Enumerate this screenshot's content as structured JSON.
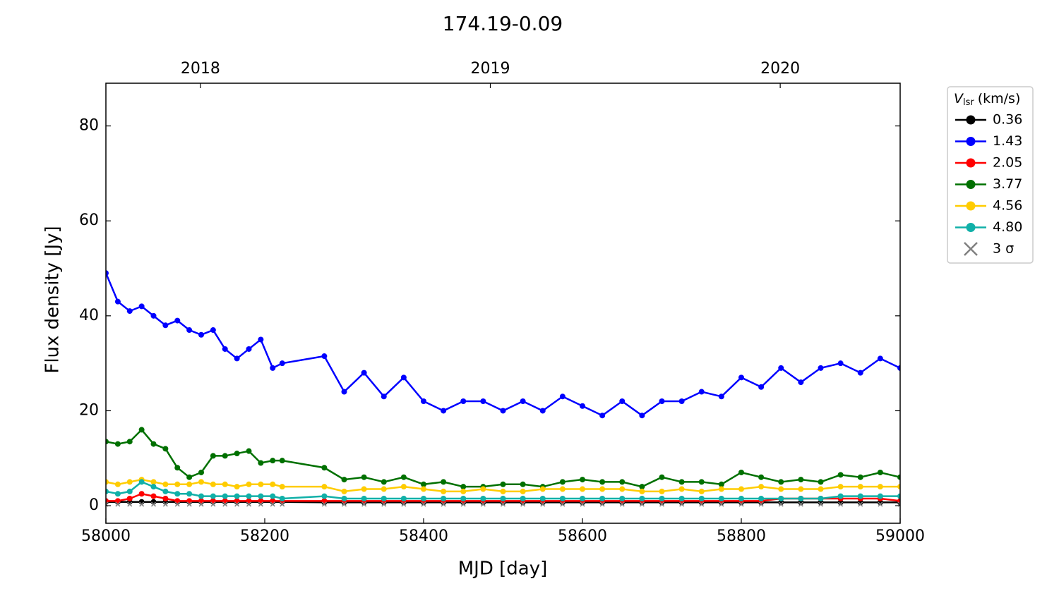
{
  "chart_data": {
    "type": "line",
    "title": "174.19-0.09",
    "x_label": "MJD [day]",
    "y_label": "Flux density [Jy]",
    "legend_title": {
      "symbol": "V",
      "subscript": "lsr",
      "unit": "(km/s)"
    },
    "legend_position": "outside-right",
    "xlim": [
      58000,
      59000
    ],
    "xticks": [
      58000,
      58200,
      58400,
      58600,
      58800,
      59000
    ],
    "ylim": [
      -3.7,
      89
    ],
    "yticks": [
      0,
      20,
      40,
      60,
      80
    ],
    "top_xticks": [
      {
        "value": 58119,
        "label": "2018"
      },
      {
        "value": 58484,
        "label": "2019"
      },
      {
        "value": 58849,
        "label": "2020"
      }
    ],
    "x": [
      58000,
      58015,
      58030,
      58045,
      58060,
      58075,
      58090,
      58105,
      58120,
      58135,
      58150,
      58165,
      58180,
      58195,
      58210,
      58222,
      58275,
      58300,
      58325,
      58350,
      58375,
      58400,
      58425,
      58450,
      58475,
      58500,
      58525,
      58550,
      58575,
      58600,
      58625,
      58650,
      58675,
      58700,
      58725,
      58750,
      58775,
      58800,
      58825,
      58850,
      58875,
      58900,
      58925,
      58950,
      58975,
      59000
    ],
    "series": [
      {
        "name": "0.36",
        "color": "#000000",
        "marker": "o",
        "values": [
          0.8,
          0.8,
          0.8,
          0.8,
          0.8,
          0.8,
          0.8,
          0.8,
          0.8,
          0.8,
          0.8,
          0.8,
          0.8,
          0.8,
          0.8,
          0.8,
          0.7,
          0.7,
          0.7,
          0.7,
          0.7,
          0.7,
          0.7,
          0.7,
          0.7,
          0.7,
          0.7,
          0.7,
          0.7,
          0.7,
          0.7,
          0.7,
          0.7,
          0.7,
          0.7,
          0.7,
          0.7,
          0.7,
          0.7,
          0.7,
          0.7,
          0.7,
          0.7,
          0.7,
          0.7,
          0.7
        ]
      },
      {
        "name": "1.43",
        "color": "#0000ff",
        "marker": "o",
        "values": [
          49,
          43,
          41,
          42,
          40,
          38,
          39,
          37,
          36,
          37,
          33,
          31,
          33,
          35,
          29,
          30,
          31.5,
          24,
          28,
          23,
          27,
          22,
          20,
          22,
          22,
          20,
          22,
          20,
          23,
          21,
          19,
          22,
          19,
          22,
          22,
          24,
          23,
          27,
          25,
          29,
          26,
          29,
          30,
          28,
          31,
          29
        ]
      },
      {
        "name": "2.05",
        "color": "#ff0000",
        "marker": "o",
        "values": [
          1,
          1,
          1.5,
          2.5,
          2,
          1.5,
          1,
          1,
          1,
          1,
          1,
          1,
          1,
          1,
          1,
          1,
          1,
          1,
          1,
          1,
          1,
          1,
          1,
          1,
          1,
          1,
          1,
          1,
          1,
          1,
          1,
          1,
          1,
          1,
          1,
          1,
          1,
          1,
          1,
          1.5,
          1.5,
          1.5,
          1.5,
          1.5,
          1.5,
          1
        ]
      },
      {
        "name": "3.77",
        "color": "#007000",
        "marker": "o",
        "values": [
          13.5,
          13,
          13.5,
          16,
          13,
          12,
          8,
          6,
          7,
          10.5,
          10.5,
          11,
          11.5,
          9,
          9.5,
          9.5,
          8,
          5.5,
          6,
          5,
          6,
          4.5,
          5,
          4,
          4,
          4.5,
          4.5,
          4,
          5,
          5.5,
          5,
          5,
          4,
          6,
          5,
          5,
          4.5,
          7,
          6,
          5,
          5.5,
          5,
          6.5,
          6,
          7,
          6
        ]
      },
      {
        "name": "4.56",
        "color": "#ffcc00",
        "marker": "o",
        "values": [
          5,
          4.5,
          5,
          5.5,
          5,
          4.5,
          4.5,
          4.5,
          5,
          4.5,
          4.5,
          4,
          4.5,
          4.5,
          4.5,
          4,
          4,
          3,
          3.5,
          3.5,
          4,
          3.5,
          3,
          3,
          3.5,
          3,
          3,
          3.5,
          3.5,
          3.5,
          3.5,
          3.5,
          3,
          3,
          3.5,
          3,
          3.5,
          3.5,
          4,
          3.5,
          3.5,
          3.5,
          4,
          4,
          4,
          4
        ]
      },
      {
        "name": "4.80",
        "color": "#10b0a8",
        "marker": "o",
        "values": [
          3,
          2.5,
          3,
          5,
          4,
          3,
          2.5,
          2.5,
          2,
          2,
          2,
          2,
          2,
          2,
          2,
          1.5,
          2,
          1.5,
          1.5,
          1.5,
          1.5,
          1.5,
          1.5,
          1.5,
          1.5,
          1.5,
          1.5,
          1.5,
          1.5,
          1.5,
          1.5,
          1.5,
          1.5,
          1.5,
          1.5,
          1.5,
          1.5,
          1.5,
          1.5,
          1.5,
          1.5,
          1.5,
          2,
          2,
          2,
          2
        ]
      },
      {
        "name": "3 σ",
        "color": "#808080",
        "marker": "x",
        "values": [
          0.3,
          0.3,
          0.3,
          0.3,
          0.3,
          0.3,
          0.3,
          0.3,
          0.3,
          0.3,
          0.3,
          0.3,
          0.3,
          0.3,
          0.3,
          0.3,
          0.3,
          0.3,
          0.3,
          0.3,
          0.3,
          0.3,
          0.3,
          0.3,
          0.3,
          0.3,
          0.3,
          0.3,
          0.3,
          0.3,
          0.3,
          0.3,
          0.3,
          0.3,
          0.3,
          0.3,
          0.3,
          0.3,
          0.3,
          0.3,
          0.3,
          0.3,
          0.3,
          0.3,
          0.3,
          0.3
        ]
      }
    ]
  }
}
